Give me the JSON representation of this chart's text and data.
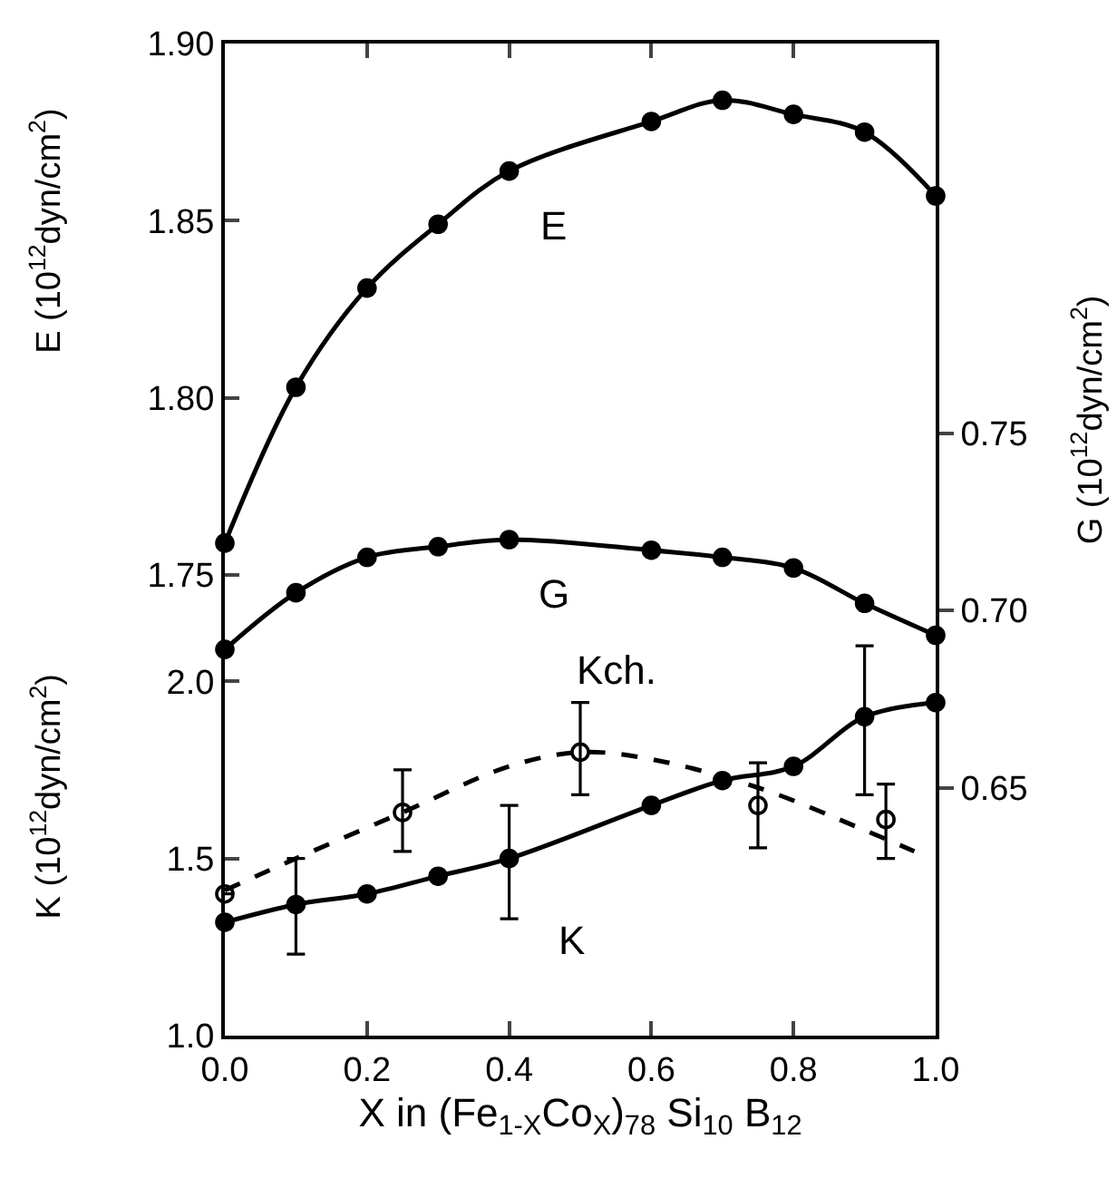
{
  "chart_data": {
    "type": "line",
    "xlabel": "X in (Fe$_{1-X}$Co$_{X}$)$_{78}$ Si$_{10}$ B$_{12}$",
    "ylabel": "E (10$^{12}$dyn/cm$^{2}$)",
    "y2label": "G (10$^{12}$dyn/cm$^{2}$)",
    "y3label": "K (10$^{12}$dyn/cm$^{2}$)",
    "xlim": [
      0,
      1.0
    ],
    "xticks": [
      {
        "value": 0,
        "label": "0.0"
      },
      {
        "value": 0.2,
        "label": "0.2"
      },
      {
        "value": 0.4,
        "label": "0.4"
      },
      {
        "value": 0.6,
        "label": "0.6"
      },
      {
        "value": 0.8,
        "label": "0.8"
      },
      {
        "value": 1.0,
        "label": "1.0"
      }
    ],
    "ylim": [
      1.62,
      1.9
    ],
    "yticks": [
      {
        "value": 1.75,
        "label": "1.75"
      },
      {
        "value": 1.8,
        "label": "1.80"
      },
      {
        "value": 1.85,
        "label": "1.85"
      },
      {
        "value": 1.9,
        "label": "1.90"
      }
    ],
    "y2lim": [
      0.58,
      0.86
    ],
    "y2ticks": [
      {
        "value": 0.65,
        "label": "0.65"
      },
      {
        "value": 0.7,
        "label": "0.70"
      },
      {
        "value": 0.75,
        "label": "0.75"
      }
    ],
    "y3lim": [
      1.0,
      3.8
    ],
    "y3ticks": [
      {
        "value": 1.0,
        "label": "1.0"
      },
      {
        "value": 1.5,
        "label": "1.5"
      },
      {
        "value": 2.0,
        "label": "2.0"
      }
    ],
    "series": [
      {
        "name": "E",
        "color": "#000000",
        "axis": "y",
        "marker": "circle",
        "line_style": "solid",
        "x": [
          0,
          0.1,
          0.2,
          0.3,
          0.4,
          0.6,
          0.7,
          0.8,
          0.9,
          1.0
        ],
        "values": [
          1.759,
          1.803,
          1.831,
          1.849,
          1.864,
          1.878,
          1.884,
          1.88,
          1.875,
          1.857
        ]
      },
      {
        "name": "G",
        "color": "#000000",
        "axis": "y2",
        "marker": "circle",
        "line_style": "solid",
        "x": [
          0,
          0.1,
          0.2,
          0.3,
          0.4,
          0.6,
          0.7,
          0.8,
          0.9,
          1.0
        ],
        "values": [
          0.689,
          0.705,
          0.715,
          0.718,
          0.72,
          0.717,
          0.715,
          0.712,
          0.702,
          0.693
        ]
      },
      {
        "name": "K",
        "color": "#000000",
        "axis": "y3",
        "marker": "circle",
        "line_style": "solid",
        "x": [
          0,
          0.1,
          0.2,
          0.3,
          0.4,
          0.6,
          0.7,
          0.8,
          0.9,
          1.0
        ],
        "values": [
          1.32,
          1.37,
          1.4,
          1.45,
          1.5,
          1.65,
          1.72,
          1.76,
          1.9,
          1.94
        ],
        "errors": [
          null,
          [
            1.23,
            1.5
          ],
          null,
          null,
          [
            1.33,
            1.65
          ],
          null,
          null,
          null,
          [
            1.68,
            2.1
          ],
          null
        ]
      },
      {
        "name": "Kch.",
        "type": "scatter",
        "color": "#000000",
        "axis": "y3",
        "marker": "circle-open",
        "x": [
          0,
          0.25,
          0.5,
          0.75,
          0.93
        ],
        "values": [
          1.4,
          1.63,
          1.8,
          1.65,
          1.61
        ],
        "errors": [
          null,
          [
            1.52,
            1.75
          ],
          [
            1.68,
            1.94
          ],
          [
            1.53,
            1.77
          ],
          [
            1.5,
            1.71
          ]
        ]
      },
      {
        "type": "line",
        "color": "#000000",
        "axis": "y3",
        "marker": "none",
        "line_style": "dashed",
        "x": [
          0,
          0.1,
          0.25,
          0.4,
          0.5,
          0.6,
          0.75,
          0.9,
          0.97
        ],
        "values": [
          1.41,
          1.5,
          1.63,
          1.76,
          1.8,
          1.78,
          1.7,
          1.58,
          1.52
        ]
      }
    ]
  }
}
